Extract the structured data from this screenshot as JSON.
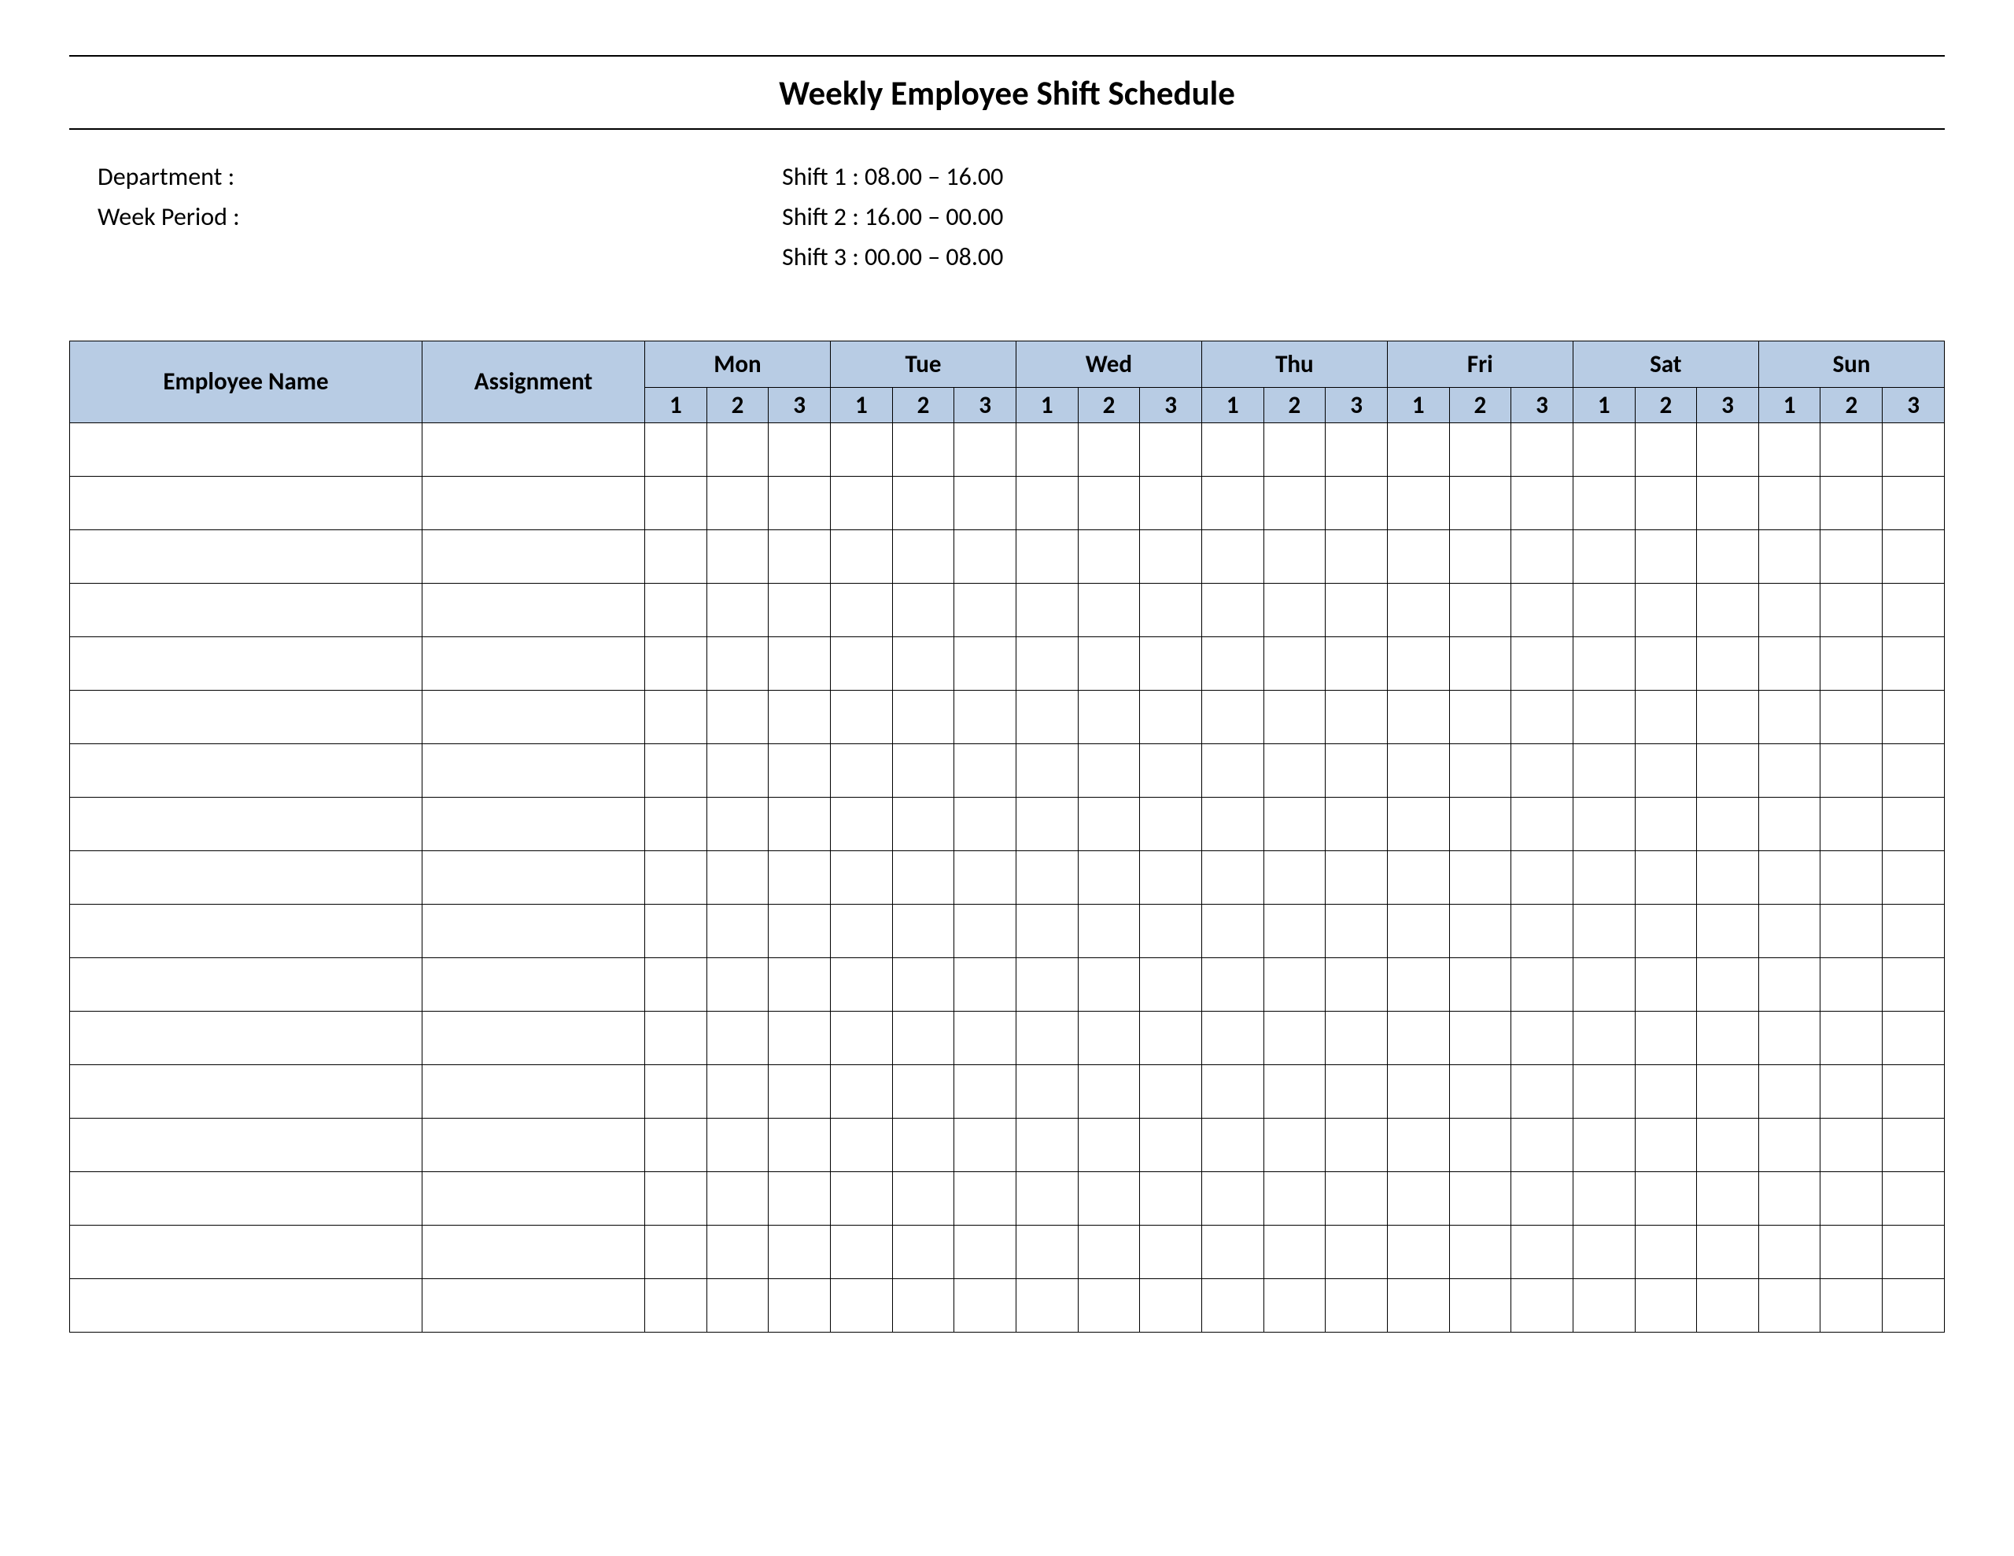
{
  "title": "Weekly Employee Shift Schedule",
  "meta": {
    "department_label": "Department    :",
    "week_period_label": "Week  Period :",
    "shift1": "Shift 1  : 08.00  – 16.00",
    "shift2": "Shift 2  : 16.00  – 00.00",
    "shift3": "Shift 3  : 00.00  – 08.00"
  },
  "table": {
    "employee_header": "Employee Name",
    "assignment_header": "Assignment",
    "days": [
      "Mon",
      "Tue",
      "Wed",
      "Thu",
      "Fri",
      "Sat",
      "Sun"
    ],
    "shift_labels": [
      "1",
      "2",
      "3"
    ],
    "num_rows": 17,
    "header_bg": "#b8cce4",
    "border_color": "#000000"
  }
}
